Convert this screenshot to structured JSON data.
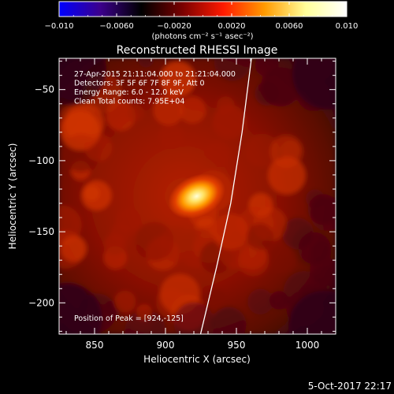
{
  "chart_data": {
    "type": "heatmap",
    "title": "Reconstructed RHESSI Image",
    "xlabel": "Heliocentric X (arcsec)",
    "ylabel": "Heliocentric Y (arcsec)",
    "xlim": [
      825,
      1020
    ],
    "ylim": [
      -222,
      -28
    ],
    "x_ticks": [
      850,
      900,
      950,
      1000
    ],
    "y_ticks": [
      -50,
      -100,
      -150,
      -200
    ],
    "colorbar": {
      "range": [
        -0.01,
        0.01
      ],
      "ticks": [
        -0.01,
        -0.006,
        -0.002,
        0.002,
        0.006,
        0.01
      ],
      "tick_labels": [
        "−0.010",
        "−0.0060",
        "−0.0020",
        "0.0020",
        "0.0060",
        "0.010"
      ],
      "unit_label": "(photons cm⁻² s⁻¹ asec⁻²)"
    },
    "colors": {
      "background": "#000000",
      "limb": "#ffffff",
      "colormap": [
        "#0000ff",
        "#3c008c",
        "#000000",
        "#7a0000",
        "#ff1a00",
        "#ff9a00",
        "#ffff9a",
        "#ffffff"
      ]
    },
    "peak": {
      "x": 924,
      "y": -125
    },
    "annotations": [
      "27-Apr-2015 21:11:04.000 to 21:21:04.000",
      "Detectors: 3F 5F 6F 7F 8F 9F, Att 0",
      "Energy Range: 6.0 - 12.0 keV",
      "Clean     Total counts: 7.95E+04"
    ],
    "peak_label": "Position of Peak = [924,-125]",
    "timestamp": "5-Oct-2017 22:17"
  }
}
